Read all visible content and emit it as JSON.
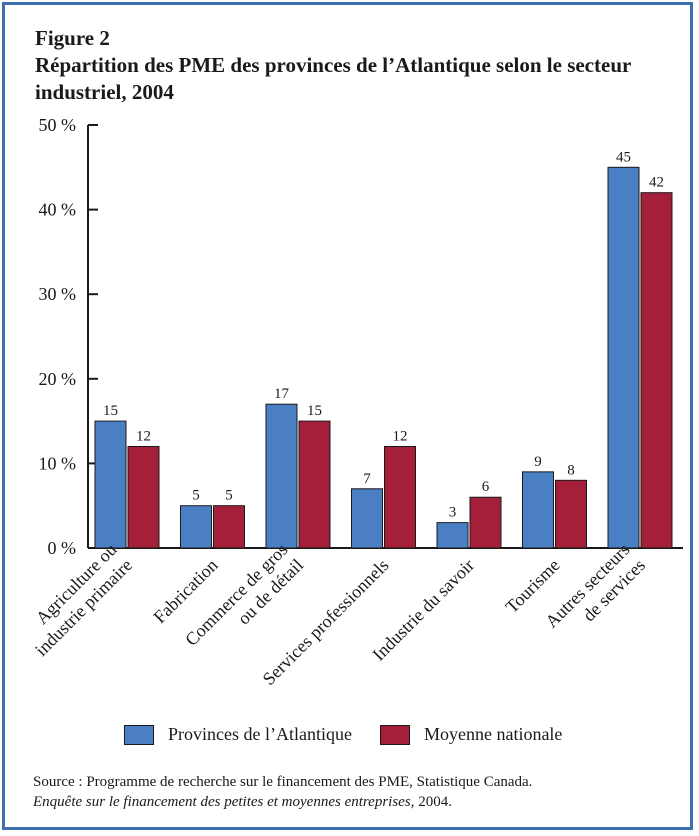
{
  "figure_label": "Figure 2",
  "title": "Répartition des PME des provinces de l’Atlantique selon le secteur industriel, 2004",
  "colors": {
    "frame": "#3e6fb0",
    "series_1": "#4a7fc4",
    "series_2": "#a4203a"
  },
  "chart_data": {
    "type": "bar",
    "title": "Répartition des PME des provinces de l’Atlantique selon le secteur industriel, 2004",
    "categories": [
      [
        "Agriculture ou",
        "industrie primaire"
      ],
      [
        "Fabrication"
      ],
      [
        "Commerce de gros",
        "ou de détail"
      ],
      [
        "Services professionnels"
      ],
      [
        "Industrie du savoir"
      ],
      [
        "Tourisme"
      ],
      [
        "Autres secteurs",
        "de services"
      ]
    ],
    "series": [
      {
        "name": "Provinces de l’Atlantique",
        "values": [
          15,
          5,
          17,
          7,
          3,
          9,
          45
        ]
      },
      {
        "name": "Moyenne nationale",
        "values": [
          12,
          5,
          15,
          12,
          6,
          8,
          42
        ]
      }
    ],
    "ylim": [
      0,
      50
    ],
    "yticks": [
      "0 %",
      "10 %",
      "20 %",
      "30 %",
      "40 %",
      "50 %"
    ],
    "xlabel": "",
    "ylabel": "",
    "legend_position": "bottom",
    "grid": false
  },
  "legend": {
    "items": [
      {
        "label": "Provinces de l’Atlantique"
      },
      {
        "label": "Moyenne nationale"
      }
    ]
  },
  "source": {
    "line1": "Source : Programme de recherche sur le financement des PME, Statistique Canada.",
    "line2_italic": "Enquête sur le financement des petites et moyennes entreprises,",
    "line2_tail": " 2004."
  }
}
